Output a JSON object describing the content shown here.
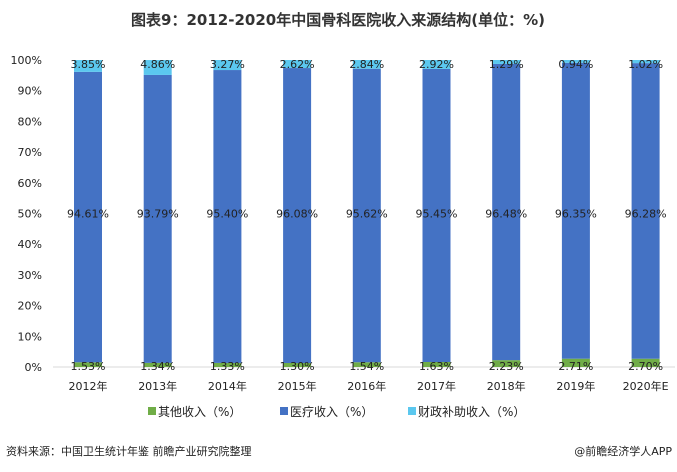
{
  "chart_data": {
    "type": "bar",
    "stacked": true,
    "title": "图表9：2012-2020年中国骨科医院收入来源结构(单位：%)",
    "categories": [
      "2012年",
      "2013年",
      "2014年",
      "2015年",
      "2016年",
      "2017年",
      "2018年",
      "2019年",
      "2020年E"
    ],
    "series": [
      {
        "name": "其他收入（%）",
        "color": "#70ad47",
        "values": [
          1.53,
          1.34,
          1.33,
          1.3,
          1.54,
          1.63,
          2.23,
          2.71,
          2.7
        ],
        "labels": [
          "1.53%",
          "1.34%",
          "1.33%",
          "1.30%",
          "1.54%",
          "1.63%",
          "2.23%",
          "2.71%",
          "2.70%"
        ]
      },
      {
        "name": "医疗收入（%）",
        "color": "#4472c4",
        "values": [
          94.61,
          93.79,
          95.4,
          96.08,
          95.62,
          95.45,
          96.48,
          96.35,
          96.28
        ],
        "labels": [
          "94.61%",
          "93.79%",
          "95.40%",
          "96.08%",
          "95.62%",
          "95.45%",
          "96.48%",
          "96.35%",
          "96.28%"
        ]
      },
      {
        "name": "财政补助收入（%）",
        "color": "#5bc8ef",
        "values": [
          3.85,
          4.86,
          3.27,
          2.62,
          2.84,
          2.92,
          1.29,
          0.94,
          1.02
        ],
        "labels": [
          "3.85%",
          "4.86%",
          "3.27%",
          "2.62%",
          "2.84%",
          "2.92%",
          "1.29%",
          "0.94%",
          "1.02%"
        ]
      }
    ],
    "yticks": [
      "0%",
      "10%",
      "20%",
      "30%",
      "40%",
      "50%",
      "60%",
      "70%",
      "80%",
      "90%",
      "100%"
    ],
    "ylim": [
      0,
      100
    ],
    "xlabel": "",
    "ylabel": "",
    "legend": "bottom",
    "grid": false
  },
  "footer": {
    "source": "资料来源：中国卫生统计年鉴 前瞻产业研究院整理",
    "credit": "@前瞻经济学人APP"
  }
}
